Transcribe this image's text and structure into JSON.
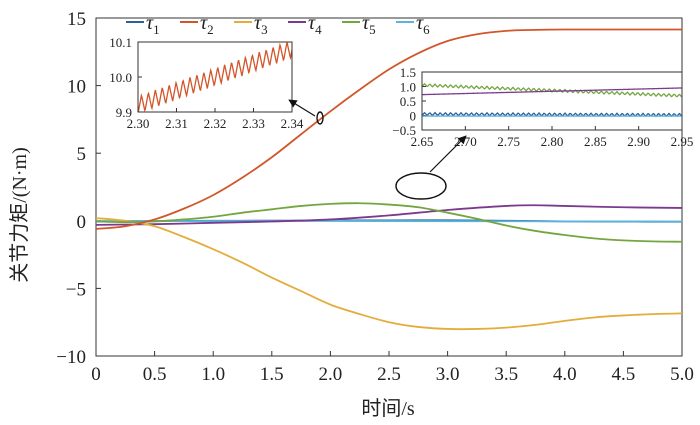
{
  "chart_data": [
    {
      "type": "line",
      "xlabel": "时间/s",
      "ylabel": "关节力矩/(N·m)",
      "xlim": [
        0,
        5
      ],
      "ylim": [
        -10,
        15
      ],
      "xticks": [
        0,
        0.5,
        1,
        1.5,
        2,
        2.5,
        3,
        3.5,
        4,
        4.5,
        5
      ],
      "xtick_labels": [
        "0",
        "0.5",
        "1.0",
        "1.5",
        "2.0",
        "2.5",
        "3.0",
        "3.5",
        "4.0",
        "4.5",
        "5.0"
      ],
      "yticks": [
        -10,
        -5,
        0,
        5,
        10,
        15
      ],
      "ytick_labels": [
        "−10",
        "−5",
        "0",
        "5",
        "10",
        "15"
      ],
      "legend_position": "top",
      "grid": false,
      "series": [
        {
          "name": "τ1",
          "base": "τ",
          "sub": "1",
          "color": "#2f5f98",
          "x": [
            0,
            0.5,
            1,
            1.5,
            2,
            2.5,
            3,
            3.5,
            4,
            4.5,
            5
          ],
          "y": [
            -0.05,
            -0.02,
            0.0,
            0.01,
            0.02,
            0.03,
            0.04,
            0.0,
            -0.04,
            -0.06,
            -0.07
          ]
        },
        {
          "name": "τ2",
          "base": "τ",
          "sub": "2",
          "color": "#d2562a",
          "x": [
            0,
            0.25,
            0.5,
            0.75,
            1,
            1.25,
            1.5,
            1.75,
            2,
            2.25,
            2.5,
            2.75,
            3,
            3.25,
            3.5,
            3.75,
            4,
            4.5,
            5
          ],
          "y": [
            -0.6,
            -0.4,
            0.1,
            0.9,
            1.9,
            3.2,
            4.7,
            6.4,
            8.1,
            9.7,
            11.2,
            12.4,
            13.3,
            13.8,
            14.05,
            14.12,
            14.15,
            14.15,
            14.15
          ]
        },
        {
          "name": "τ3",
          "base": "τ",
          "sub": "3",
          "color": "#e3ad3c",
          "x": [
            0,
            0.25,
            0.5,
            0.75,
            1,
            1.25,
            1.5,
            1.75,
            2,
            2.25,
            2.5,
            2.75,
            3,
            3.25,
            3.5,
            3.75,
            4,
            4.25,
            4.5,
            4.75,
            5
          ],
          "y": [
            0.2,
            0.0,
            -0.4,
            -1.2,
            -2.1,
            -3.1,
            -4.2,
            -5.2,
            -6.2,
            -6.9,
            -7.5,
            -7.85,
            -8.0,
            -8.0,
            -7.9,
            -7.7,
            -7.4,
            -7.15,
            -7.0,
            -6.9,
            -6.85
          ]
        },
        {
          "name": "τ4",
          "base": "τ",
          "sub": "4",
          "color": "#7c3a8e",
          "x": [
            0,
            0.5,
            1,
            1.5,
            2,
            2.5,
            3,
            3.5,
            3.75,
            4,
            4.5,
            5
          ],
          "y": [
            -0.3,
            -0.25,
            -0.15,
            -0.05,
            0.1,
            0.4,
            0.8,
            1.1,
            1.15,
            1.1,
            1.0,
            0.95
          ]
        },
        {
          "name": "τ5",
          "base": "τ",
          "sub": "5",
          "color": "#74a640",
          "x": [
            0,
            0.25,
            0.5,
            0.75,
            1,
            1.25,
            1.5,
            1.75,
            2,
            2.25,
            2.5,
            2.75,
            3,
            3.25,
            3.5,
            3.75,
            4,
            4.25,
            4.5,
            4.75,
            5
          ],
          "y": [
            -0.05,
            -0.1,
            -0.05,
            0.1,
            0.3,
            0.6,
            0.85,
            1.1,
            1.25,
            1.3,
            1.2,
            1.0,
            0.6,
            0.15,
            -0.35,
            -0.75,
            -1.05,
            -1.3,
            -1.45,
            -1.52,
            -1.55
          ]
        },
        {
          "name": "τ6",
          "base": "τ",
          "sub": "6",
          "color": "#5ab4dc",
          "x": [
            0,
            1,
            2,
            3,
            4,
            5
          ],
          "y": [
            -0.02,
            -0.02,
            -0.01,
            -0.03,
            -0.04,
            -0.05
          ]
        }
      ]
    },
    {
      "type": "line",
      "xlim": [
        2.3,
        2.34
      ],
      "ylim": [
        9.9,
        10.1
      ],
      "xticks": [
        2.3,
        2.31,
        2.32,
        2.33,
        2.34
      ],
      "xtick_labels": [
        "2.30",
        "2.31",
        "2.32",
        "2.33",
        "2.34"
      ],
      "yticks": [
        9.9,
        10.0,
        10.1
      ],
      "ytick_labels": [
        "9.9",
        "10.0",
        "10.1"
      ],
      "series": [
        {
          "name": "τ2",
          "color": "#d2562a",
          "trend": [
            [
              2.3,
              9.92
            ],
            [
              2.34,
              10.08
            ]
          ],
          "oscillation_amplitude": 0.025,
          "oscillation_period": 0.0018
        }
      ]
    },
    {
      "type": "line",
      "xlim": [
        2.65,
        2.95
      ],
      "ylim": [
        -0.5,
        1.5
      ],
      "xticks": [
        2.65,
        2.7,
        2.75,
        2.8,
        2.85,
        2.9,
        2.95
      ],
      "xtick_labels": [
        "2.65",
        "2.70",
        "2.75",
        "2.80",
        "2.85",
        "2.90",
        "2.95"
      ],
      "yticks": [
        -0.5,
        0,
        0.5,
        1.0,
        1.5
      ],
      "ytick_labels": [
        "−0.5",
        "0",
        "0.5",
        "1.0",
        "1.5"
      ],
      "series": [
        {
          "name": "τ5",
          "color": "#74a640",
          "trend": [
            [
              2.65,
              1.05
            ],
            [
              2.95,
              0.68
            ]
          ],
          "oscillation_amplitude": 0.05,
          "oscillation_period": 0.006
        },
        {
          "name": "τ4",
          "color": "#7c3a8e",
          "trend": [
            [
              2.65,
              0.72
            ],
            [
              2.95,
              0.95
            ]
          ],
          "oscillation_amplitude": 0.0,
          "oscillation_period": 0.01
        },
        {
          "name": "τ1",
          "color": "#2f5f98",
          "trend": [
            [
              2.65,
              0.05
            ],
            [
              2.95,
              0.02
            ]
          ],
          "oscillation_amplitude": 0.05,
          "oscillation_period": 0.006
        },
        {
          "name": "τ6",
          "color": "#5ab4dc",
          "trend": [
            [
              2.65,
              -0.02
            ],
            [
              2.95,
              -0.02
            ]
          ],
          "oscillation_amplitude": 0.0,
          "oscillation_period": 0.01
        }
      ]
    }
  ]
}
